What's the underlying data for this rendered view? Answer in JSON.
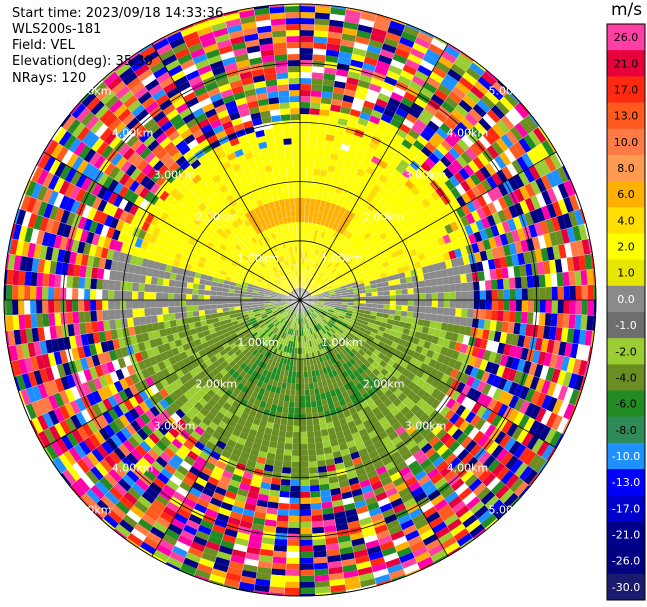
{
  "header": {
    "start_time": "Start time: 2023/09/18 14:33:36",
    "instrument": "WLS200s-181",
    "field": "Field: VEL",
    "elevation": "Elevation(deg): 35.30",
    "nrays": "NRays: 120"
  },
  "colorbar": {
    "unit": "m/s",
    "levels": [
      {
        "label": "26.0",
        "color": "#ff3fa3"
      },
      {
        "label": "21.0",
        "color": "#e8003b"
      },
      {
        "label": "17.0",
        "color": "#ff2a10"
      },
      {
        "label": "13.0",
        "color": "#ff5a1e"
      },
      {
        "label": "10.0",
        "color": "#ff7a44"
      },
      {
        "label": "8.0",
        "color": "#ff9a50"
      },
      {
        "label": "6.0",
        "color": "#ffb000"
      },
      {
        "label": "4.0",
        "color": "#ffdd00"
      },
      {
        "label": "2.0",
        "color": "#ffff00"
      },
      {
        "label": "1.0",
        "color": "#e6e600"
      },
      {
        "label": "0.0",
        "color": "#8a8a8a"
      },
      {
        "label": "-1.0",
        "color": "#6e6e6e"
      },
      {
        "label": "-2.0",
        "color": "#9acd32"
      },
      {
        "label": "-4.0",
        "color": "#6b8e23"
      },
      {
        "label": "-6.0",
        "color": "#228b22"
      },
      {
        "label": "-8.0",
        "color": "#2e8b57"
      },
      {
        "label": "-10.0",
        "color": "#1e90ff"
      },
      {
        "label": "-13.0",
        "color": "#0000ff"
      },
      {
        "label": "-17.0",
        "color": "#0000cd"
      },
      {
        "label": "-21.0",
        "color": "#00008b"
      },
      {
        "label": "-26.0",
        "color": "#000080"
      },
      {
        "label": "-30.0",
        "color": "#1a1a6e"
      }
    ]
  },
  "chart_data": {
    "type": "heatmap",
    "projection": "ppi",
    "field": "VEL",
    "units": "m/s",
    "range_rings_km": [
      1.0,
      2.0,
      3.0,
      4.0,
      5.0
    ],
    "ring_labels": [
      "1.00km",
      "2.00km",
      "3.00km",
      "4.00km",
      "5.00km"
    ],
    "max_range_km": 5.0,
    "spoke_interval_deg": 30,
    "grid": true
  }
}
